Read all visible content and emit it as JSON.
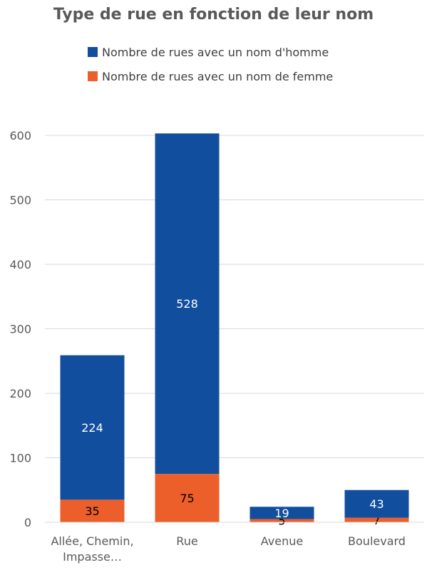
{
  "chart_data": {
    "type": "bar",
    "stacked": true,
    "title": "Type de rue en fonction de leur nom",
    "xlabel": "",
    "ylabel": "",
    "ylim": [
      0,
      600
    ],
    "yticks": [
      0,
      100,
      200,
      300,
      400,
      500,
      600
    ],
    "grid": true,
    "legend_position": "top",
    "categories": [
      "Allée, Chemin, Impasse…",
      "Rue",
      "Avenue",
      "Boulevard"
    ],
    "category_lines": [
      [
        "Allée, Chemin,",
        "Impasse…"
      ],
      [
        "Rue"
      ],
      [
        "Avenue"
      ],
      [
        "Boulevard"
      ]
    ],
    "series": [
      {
        "name": "Nombre de rues avec un nom de femme",
        "values": [
          35,
          75,
          5,
          7
        ],
        "color": "#ED5F2A",
        "label_color": "#000000"
      },
      {
        "name": "Nombre de rues avec un nom d'homme",
        "values": [
          224,
          528,
          19,
          43
        ],
        "color": "#124E9E",
        "label_color": "#ffffff"
      }
    ],
    "legend_order": [
      1,
      0
    ]
  }
}
